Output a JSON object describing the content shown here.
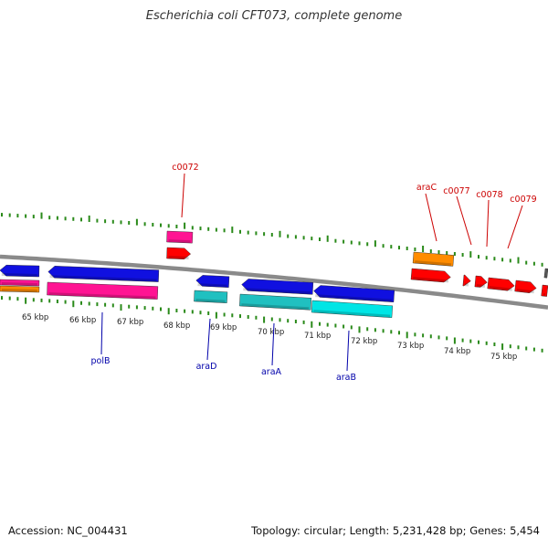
{
  "title": "Escherichia coli CFT073, complete genome",
  "footer": {
    "accession": "Accession: NC_004431",
    "summary": "Topology: circular; Length: 5,231,428 bp; Genes: 5,454"
  },
  "colors": {
    "backbone": "#8a8a8a",
    "tick": "#2a8a1a",
    "forward_label": "#cc0000",
    "reverse_label": "#0000aa",
    "blue": "#1010e0",
    "magenta": "#ff1493",
    "orange": "#ff8c00",
    "red": "#ff0000",
    "cyan": "#00e5e5",
    "teal": "#20c0c0",
    "gray": "#555555"
  },
  "kbp_labels": [
    "65 kbp",
    "66 kbp",
    "67 kbp",
    "68 kbp",
    "69 kbp",
    "70 kbp",
    "71 kbp",
    "72 kbp",
    "73 kbp",
    "74 kbp",
    "75 kbp"
  ],
  "forward_gene_labels": [
    "c0072",
    "araC",
    "c0077",
    "c0078",
    "c0079"
  ],
  "reverse_gene_labels": [
    "polB",
    "araD",
    "araA",
    "araB"
  ]
}
